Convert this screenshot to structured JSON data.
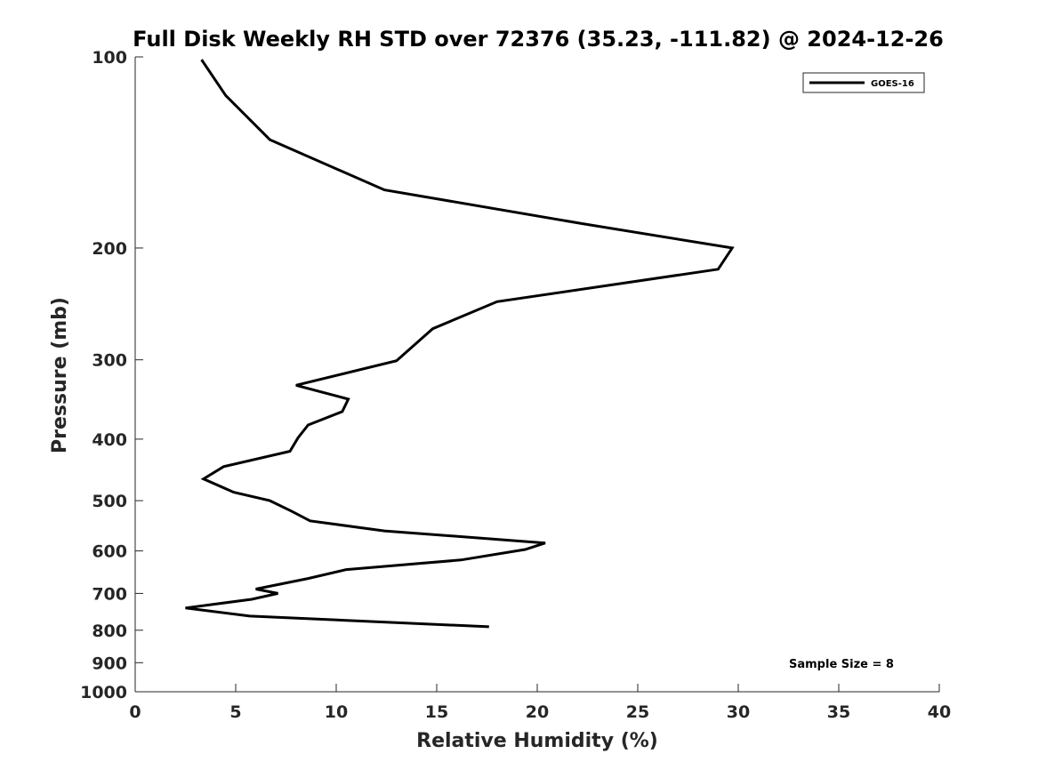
{
  "chart_data": {
    "type": "line",
    "title": "Full Disk Weekly RH STD over 72376 (35.23, -111.82) @ 2024-12-26",
    "xlabel": "Relative Humidity (%)",
    "ylabel": "Pressure (mb)",
    "xlim": [
      0,
      40
    ],
    "ylim": [
      100,
      1000
    ],
    "yscale": "log",
    "y_reversed": true,
    "grid": false,
    "x_ticks": [
      0,
      5,
      10,
      15,
      20,
      25,
      30,
      35,
      40
    ],
    "x_tick_labels": [
      "0",
      "5",
      "10",
      "15",
      "20",
      "25",
      "30",
      "35",
      "40"
    ],
    "y_ticks": [
      100,
      200,
      300,
      400,
      500,
      600,
      700,
      800,
      900,
      1000
    ],
    "y_tick_labels": [
      "100",
      "200",
      "300",
      "400",
      "500",
      "600",
      "700",
      "800",
      "900",
      "1000"
    ],
    "legend_position": "top-right",
    "series": [
      {
        "name": "GOES-16",
        "color": "#000000",
        "points": [
          {
            "x": 3.3,
            "p": 101
          },
          {
            "x": 4.5,
            "p": 115
          },
          {
            "x": 6.7,
            "p": 135
          },
          {
            "x": 12.4,
            "p": 162
          },
          {
            "x": 22.2,
            "p": 183
          },
          {
            "x": 29.7,
            "p": 200
          },
          {
            "x": 29.0,
            "p": 216
          },
          {
            "x": 18.0,
            "p": 243
          },
          {
            "x": 14.8,
            "p": 268
          },
          {
            "x": 13.0,
            "p": 301
          },
          {
            "x": 8.0,
            "p": 329
          },
          {
            "x": 10.6,
            "p": 346
          },
          {
            "x": 10.3,
            "p": 362
          },
          {
            "x": 8.6,
            "p": 380
          },
          {
            "x": 8.1,
            "p": 398
          },
          {
            "x": 7.7,
            "p": 418
          },
          {
            "x": 4.4,
            "p": 442
          },
          {
            "x": 3.4,
            "p": 462
          },
          {
            "x": 4.9,
            "p": 485
          },
          {
            "x": 6.7,
            "p": 500
          },
          {
            "x": 7.8,
            "p": 520
          },
          {
            "x": 8.7,
            "p": 538
          },
          {
            "x": 12.4,
            "p": 558
          },
          {
            "x": 20.4,
            "p": 583
          },
          {
            "x": 19.4,
            "p": 597
          },
          {
            "x": 16.2,
            "p": 620
          },
          {
            "x": 10.5,
            "p": 642
          },
          {
            "x": 8.6,
            "p": 663
          },
          {
            "x": 6.0,
            "p": 689
          },
          {
            "x": 7.1,
            "p": 700
          },
          {
            "x": 5.8,
            "p": 715
          },
          {
            "x": 2.5,
            "p": 738
          },
          {
            "x": 5.7,
            "p": 760
          },
          {
            "x": 17.6,
            "p": 790
          }
        ]
      }
    ],
    "annotation": "Sample Size = 8"
  }
}
